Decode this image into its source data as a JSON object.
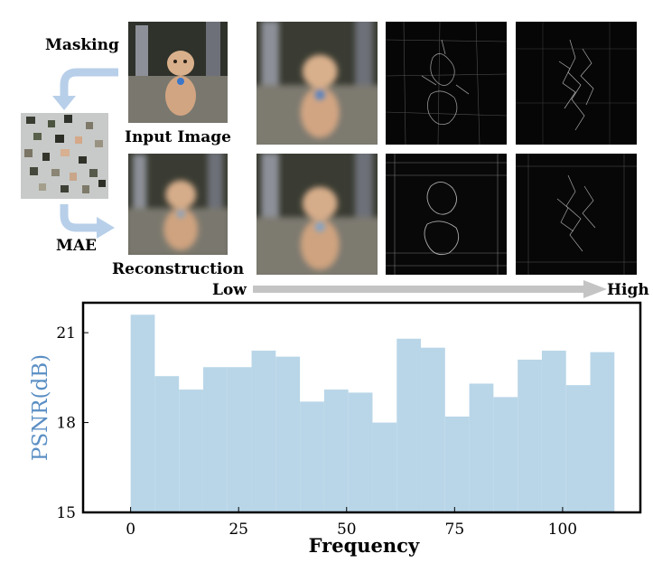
{
  "figure": {
    "masking_label": "Masking",
    "input_label": "Input Image",
    "mae_label": "MAE",
    "reconstruction_label": "Reconstruction",
    "low_label": "Low",
    "high_label": "High"
  },
  "colors": {
    "bar": "#b9d6e8",
    "ylabel": "#5b8fc4",
    "arrow": "#b8cfe9",
    "gradient_arrow": "#c4c4c4"
  },
  "chart_data": {
    "type": "bar",
    "title": "",
    "xlabel": "Frequency",
    "ylabel": "PSNR(dB)",
    "x": [
      0,
      5.6,
      11.2,
      16.8,
      22.4,
      28,
      33.6,
      39.2,
      44.8,
      50.4,
      56,
      61.6,
      67.2,
      72.8,
      78.4,
      84,
      89.6,
      95.2,
      100.8,
      106.4
    ],
    "bin_width": 5.6,
    "values": [
      21.6,
      19.55,
      19.1,
      19.85,
      19.85,
      20.4,
      20.2,
      18.7,
      19.1,
      19.0,
      18.0,
      20.8,
      20.5,
      18.2,
      19.3,
      18.85,
      20.1,
      20.4,
      19.25,
      20.35
    ],
    "xlim": [
      -11,
      118
    ],
    "ylim": [
      15,
      22
    ],
    "xticks": [
      0,
      25,
      50,
      75,
      100
    ],
    "yticks": [
      15,
      18,
      21
    ],
    "xtick_labels": [
      "0",
      "25",
      "50",
      "75",
      "100"
    ],
    "ytick_labels": [
      "15",
      "18",
      "21"
    ],
    "grid": false
  }
}
